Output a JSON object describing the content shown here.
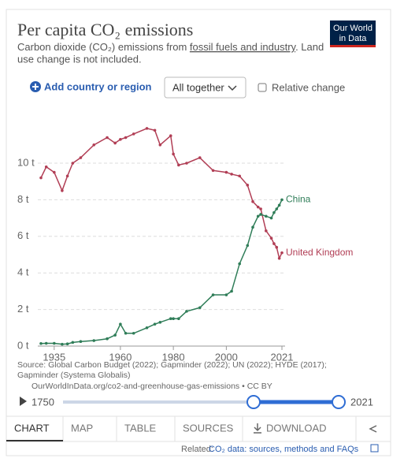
{
  "header": {
    "title": "Per capita CO₂ emissions",
    "subtitle_start": "Carbon dioxide (CO₂) emissions from ",
    "subtitle_link": "fossil fuels and industry",
    "subtitle_end": ". Land",
    "subtitle_line2": "use change is not included.",
    "logo_line1": "Our World",
    "logo_line2": "in Data"
  },
  "controls": {
    "add": "Add country or region",
    "mode": "All together",
    "relative": "Relative change"
  },
  "chart_data": {
    "type": "line",
    "x": [
      1930,
      1932,
      1935,
      1938,
      1940,
      1942,
      1945,
      1950,
      1955,
      1958,
      1960,
      1962,
      1965,
      1970,
      1973,
      1975,
      1979,
      1980,
      1982,
      1985,
      1990,
      1995,
      2000,
      2002,
      2005,
      2008,
      2010,
      2012,
      2013,
      2015,
      2017,
      2018,
      2019,
      2020,
      2021
    ],
    "series": [
      {
        "name": "United Kingdom",
        "color": "#b13e55",
        "values": [
          9.2,
          9.8,
          9.5,
          8.5,
          9.3,
          10.0,
          10.3,
          11.0,
          11.4,
          11.1,
          11.3,
          11.4,
          11.6,
          11.9,
          11.8,
          11.0,
          11.5,
          10.5,
          9.9,
          10.0,
          10.3,
          9.6,
          9.5,
          9.4,
          9.3,
          8.8,
          7.9,
          7.6,
          7.5,
          6.3,
          5.9,
          5.6,
          5.4,
          4.8,
          5.1
        ]
      },
      {
        "name": "China",
        "color": "#2f7d58",
        "values": [
          0.14,
          0.15,
          0.15,
          0.1,
          0.12,
          0.2,
          0.25,
          0.3,
          0.4,
          0.6,
          1.2,
          0.7,
          0.7,
          1.0,
          1.2,
          1.3,
          1.5,
          1.5,
          1.5,
          1.9,
          2.1,
          2.8,
          2.8,
          3.0,
          4.5,
          5.5,
          6.5,
          7.1,
          7.2,
          7.1,
          7.0,
          7.3,
          7.5,
          7.7,
          8.0
        ]
      }
    ],
    "xlim": [
      1930,
      2021
    ],
    "xticks": [
      1935,
      1960,
      1980,
      2000,
      2021
    ],
    "ylim": [
      0,
      12
    ],
    "yticks": [
      {
        "value": 0,
        "label": "0 t"
      },
      {
        "value": 2,
        "label": "2 t"
      },
      {
        "value": 4,
        "label": "4 t"
      },
      {
        "value": 6,
        "label": "6 t"
      },
      {
        "value": 8,
        "label": "8 t"
      },
      {
        "value": 10,
        "label": "10 t"
      }
    ],
    "grid": true
  },
  "footer": {
    "source_line1": "Source: Global Carbon Budget (2022); Gapminder (2022); UN (2022); HYDE (2017);",
    "source_line2": "Gapminder (Systema Globalis)",
    "url": "OurWorldInData.org/co2-and-greenhouse-gas-emissions • CC BY",
    "timeline_start": "1750",
    "timeline_end": "2021"
  },
  "tabs": [
    "CHART",
    "MAP",
    "TABLE",
    "SOURCES",
    "DOWNLOAD"
  ],
  "related": {
    "label": "Related:",
    "link": "CO₂ data: sources, methods and FAQs"
  }
}
